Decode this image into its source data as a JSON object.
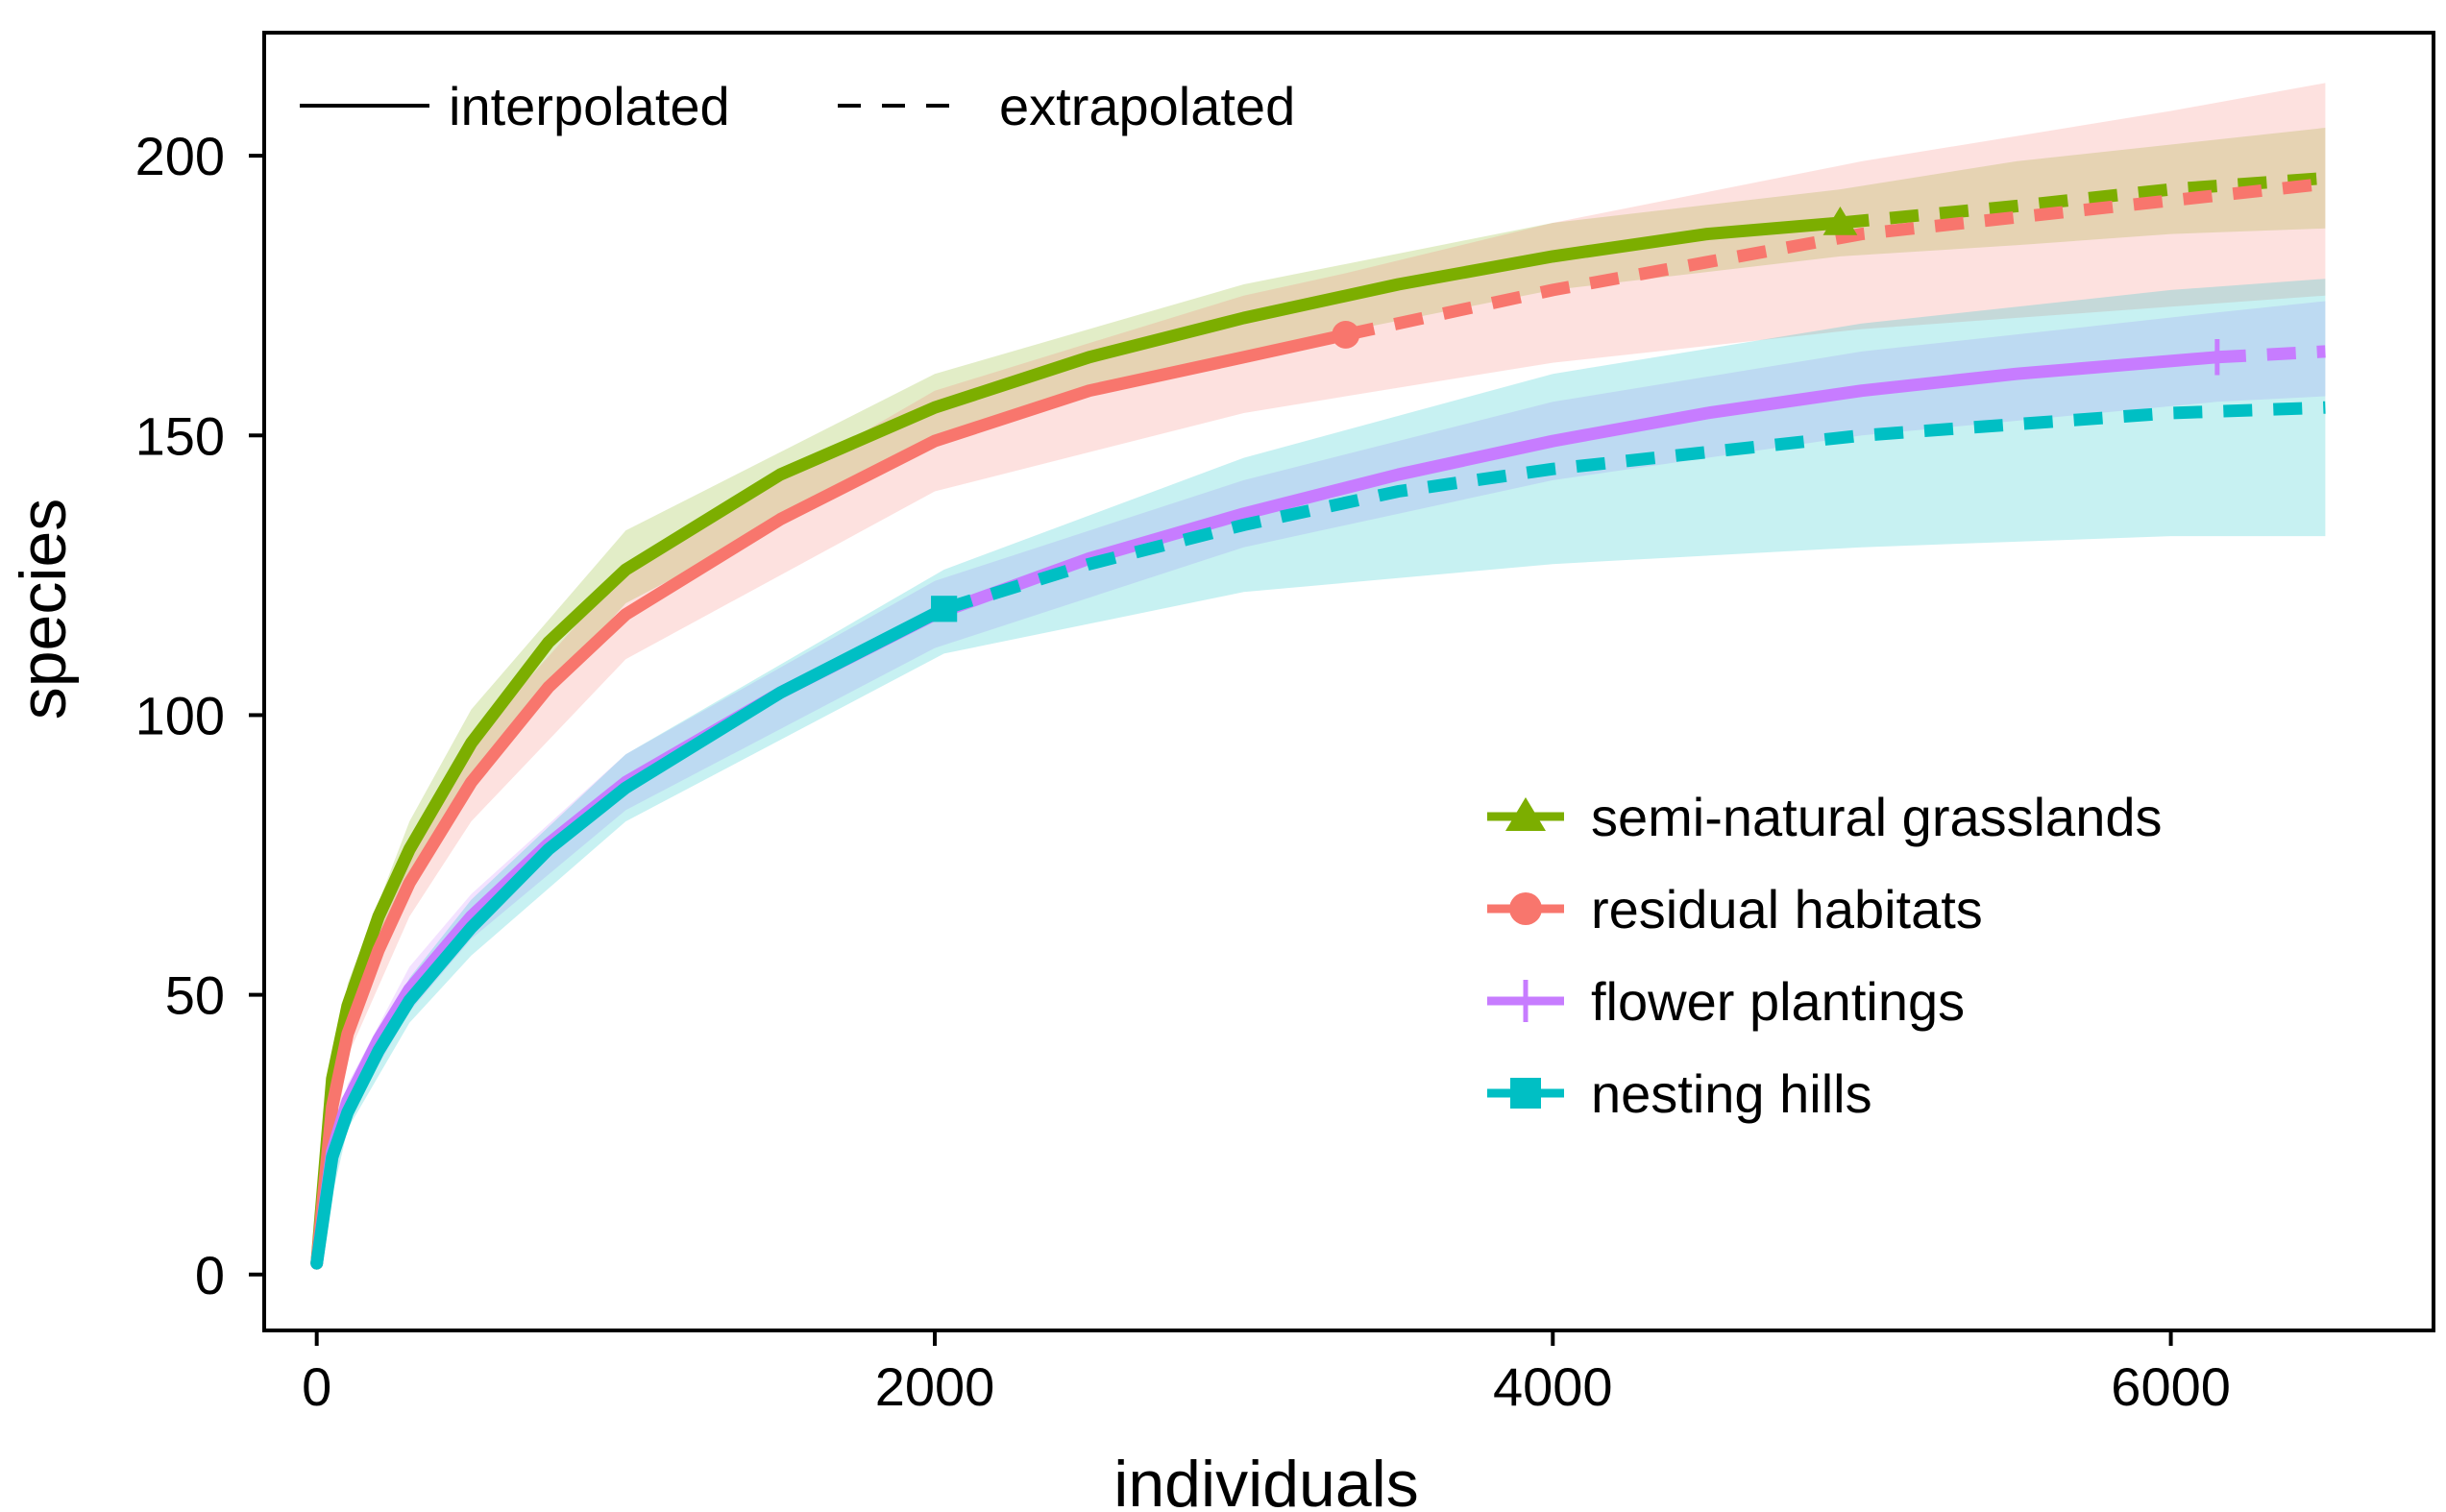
{
  "chart_data": {
    "type": "line",
    "title": "",
    "xlabel": "individuals",
    "ylabel": "species",
    "xlim": [
      -170,
      6850
    ],
    "ylim": [
      -10,
      222
    ],
    "xticks": [
      0,
      2000,
      4000,
      6000
    ],
    "xtick_labels": [
      "0",
      "2000",
      "4000",
      "6000"
    ],
    "yticks": [
      0,
      50,
      100,
      150,
      200
    ],
    "ytick_labels": [
      "0",
      "50",
      "100",
      "150",
      "200"
    ],
    "grid": false,
    "linetype_legend": {
      "position": "top-left",
      "items": [
        {
          "label": "interpolated",
          "dash": "solid"
        },
        {
          "label": "extrapolated",
          "dash": "dashed"
        }
      ]
    },
    "legend": {
      "position": "bottom-right",
      "items": [
        {
          "label": "semi-natural grasslands",
          "color": "#7CAE00",
          "marker": "triangle"
        },
        {
          "label": "residual habitats",
          "color": "#F8766D",
          "marker": "circle"
        },
        {
          "label": "flower plantings",
          "color": "#C77CFF",
          "marker": "plus"
        },
        {
          "label": "nesting hills",
          "color": "#00BFC4",
          "marker": "square"
        }
      ]
    },
    "series": [
      {
        "name": "semi-natural grasslands",
        "color": "#7CAE00",
        "marker": "triangle",
        "observed": {
          "x": 4930,
          "y": 188
        },
        "interpolated": [
          [
            0,
            2
          ],
          [
            50,
            35
          ],
          [
            100,
            48
          ],
          [
            200,
            64
          ],
          [
            300,
            76
          ],
          [
            500,
            95
          ],
          [
            750,
            113
          ],
          [
            1000,
            126
          ],
          [
            1500,
            143
          ],
          [
            2000,
            155
          ],
          [
            2500,
            164
          ],
          [
            3000,
            171
          ],
          [
            3500,
            177
          ],
          [
            4000,
            182
          ],
          [
            4500,
            186
          ],
          [
            4930,
            188
          ]
        ],
        "extrapolated": [
          [
            4930,
            188
          ],
          [
            5500,
            191
          ],
          [
            6000,
            194
          ],
          [
            6500,
            196
          ]
        ],
        "ci_lower": [
          [
            0,
            2
          ],
          [
            100,
            44
          ],
          [
            300,
            71
          ],
          [
            500,
            89
          ],
          [
            1000,
            120
          ],
          [
            2000,
            149
          ],
          [
            3000,
            165
          ],
          [
            4000,
            176
          ],
          [
            4930,
            182
          ],
          [
            5500,
            184
          ],
          [
            6000,
            186
          ],
          [
            6500,
            187
          ]
        ],
        "ci_upper": [
          [
            0,
            2
          ],
          [
            100,
            52
          ],
          [
            300,
            81
          ],
          [
            500,
            101
          ],
          [
            1000,
            133
          ],
          [
            2000,
            161
          ],
          [
            3000,
            177
          ],
          [
            4000,
            188
          ],
          [
            4930,
            194
          ],
          [
            5500,
            199
          ],
          [
            6000,
            202
          ],
          [
            6500,
            205
          ]
        ]
      },
      {
        "name": "residual habitats",
        "color": "#F8766D",
        "marker": "circle",
        "observed": {
          "x": 3330,
          "y": 168
        },
        "interpolated": [
          [
            0,
            2
          ],
          [
            50,
            30
          ],
          [
            100,
            43
          ],
          [
            200,
            58
          ],
          [
            300,
            70
          ],
          [
            500,
            88
          ],
          [
            750,
            105
          ],
          [
            1000,
            118
          ],
          [
            1500,
            135
          ],
          [
            2000,
            149
          ],
          [
            2500,
            158
          ],
          [
            3000,
            164
          ],
          [
            3330,
            168
          ]
        ],
        "extrapolated": [
          [
            3330,
            168
          ],
          [
            4000,
            176
          ],
          [
            4500,
            181
          ],
          [
            5000,
            186
          ],
          [
            5500,
            189
          ],
          [
            6000,
            192
          ],
          [
            6500,
            195
          ]
        ],
        "ci_lower": [
          [
            0,
            2
          ],
          [
            100,
            39
          ],
          [
            300,
            64
          ],
          [
            500,
            81
          ],
          [
            1000,
            110
          ],
          [
            2000,
            140
          ],
          [
            3000,
            154
          ],
          [
            3330,
            157
          ],
          [
            4000,
            163
          ],
          [
            5000,
            169
          ],
          [
            6000,
            173
          ],
          [
            6500,
            175
          ]
        ],
        "ci_upper": [
          [
            0,
            2
          ],
          [
            100,
            47
          ],
          [
            300,
            76
          ],
          [
            500,
            95
          ],
          [
            1000,
            126
          ],
          [
            2000,
            158
          ],
          [
            3000,
            175
          ],
          [
            3330,
            179
          ],
          [
            4000,
            188
          ],
          [
            5000,
            199
          ],
          [
            6000,
            208
          ],
          [
            6500,
            213
          ]
        ]
      },
      {
        "name": "flower plantings",
        "color": "#C77CFF",
        "marker": "plus",
        "observed": {
          "x": 6150,
          "y": 164
        },
        "interpolated": [
          [
            0,
            2
          ],
          [
            50,
            22
          ],
          [
            100,
            31
          ],
          [
            200,
            42
          ],
          [
            300,
            51
          ],
          [
            500,
            64
          ],
          [
            750,
            77
          ],
          [
            1000,
            88
          ],
          [
            1500,
            104
          ],
          [
            2000,
            118
          ],
          [
            2500,
            128
          ],
          [
            3000,
            136
          ],
          [
            3500,
            143
          ],
          [
            4000,
            149
          ],
          [
            4500,
            154
          ],
          [
            5000,
            158
          ],
          [
            5500,
            161
          ],
          [
            6150,
            164
          ]
        ],
        "extrapolated": [
          [
            6150,
            164
          ],
          [
            6500,
            165
          ]
        ],
        "ci_lower": [
          [
            0,
            2
          ],
          [
            100,
            28
          ],
          [
            300,
            47
          ],
          [
            500,
            60
          ],
          [
            1000,
            83
          ],
          [
            2000,
            112
          ],
          [
            3000,
            130
          ],
          [
            4000,
            142
          ],
          [
            5000,
            150
          ],
          [
            6150,
            156
          ],
          [
            6500,
            157
          ]
        ],
        "ci_upper": [
          [
            0,
            2
          ],
          [
            100,
            34
          ],
          [
            300,
            55
          ],
          [
            500,
            68
          ],
          [
            1000,
            93
          ],
          [
            2000,
            124
          ],
          [
            3000,
            142
          ],
          [
            4000,
            156
          ],
          [
            5000,
            165
          ],
          [
            6150,
            172
          ],
          [
            6500,
            174
          ]
        ]
      },
      {
        "name": "nesting hills",
        "color": "#00BFC4",
        "marker": "square",
        "observed": {
          "x": 2030,
          "y": 119
        },
        "interpolated": [
          [
            0,
            2
          ],
          [
            50,
            21
          ],
          [
            100,
            29
          ],
          [
            200,
            40
          ],
          [
            300,
            49
          ],
          [
            500,
            62
          ],
          [
            750,
            76
          ],
          [
            1000,
            87
          ],
          [
            1500,
            104
          ],
          [
            2030,
            119
          ]
        ],
        "extrapolated": [
          [
            2030,
            119
          ],
          [
            2500,
            127
          ],
          [
            3000,
            134
          ],
          [
            3500,
            140
          ],
          [
            4000,
            144
          ],
          [
            4500,
            147
          ],
          [
            5000,
            150
          ],
          [
            5500,
            152
          ],
          [
            6000,
            154
          ],
          [
            6500,
            155
          ]
        ],
        "ci_lower": [
          [
            0,
            2
          ],
          [
            100,
            26
          ],
          [
            300,
            45
          ],
          [
            500,
            57
          ],
          [
            1000,
            81
          ],
          [
            2030,
            111
          ],
          [
            3000,
            122
          ],
          [
            4000,
            127
          ],
          [
            5000,
            130
          ],
          [
            6000,
            132
          ],
          [
            6500,
            132
          ]
        ],
        "ci_upper": [
          [
            0,
            2
          ],
          [
            100,
            32
          ],
          [
            300,
            53
          ],
          [
            500,
            67
          ],
          [
            1000,
            93
          ],
          [
            2030,
            126
          ],
          [
            3000,
            146
          ],
          [
            4000,
            161
          ],
          [
            5000,
            170
          ],
          [
            6000,
            176
          ],
          [
            6500,
            178
          ]
        ]
      }
    ]
  }
}
